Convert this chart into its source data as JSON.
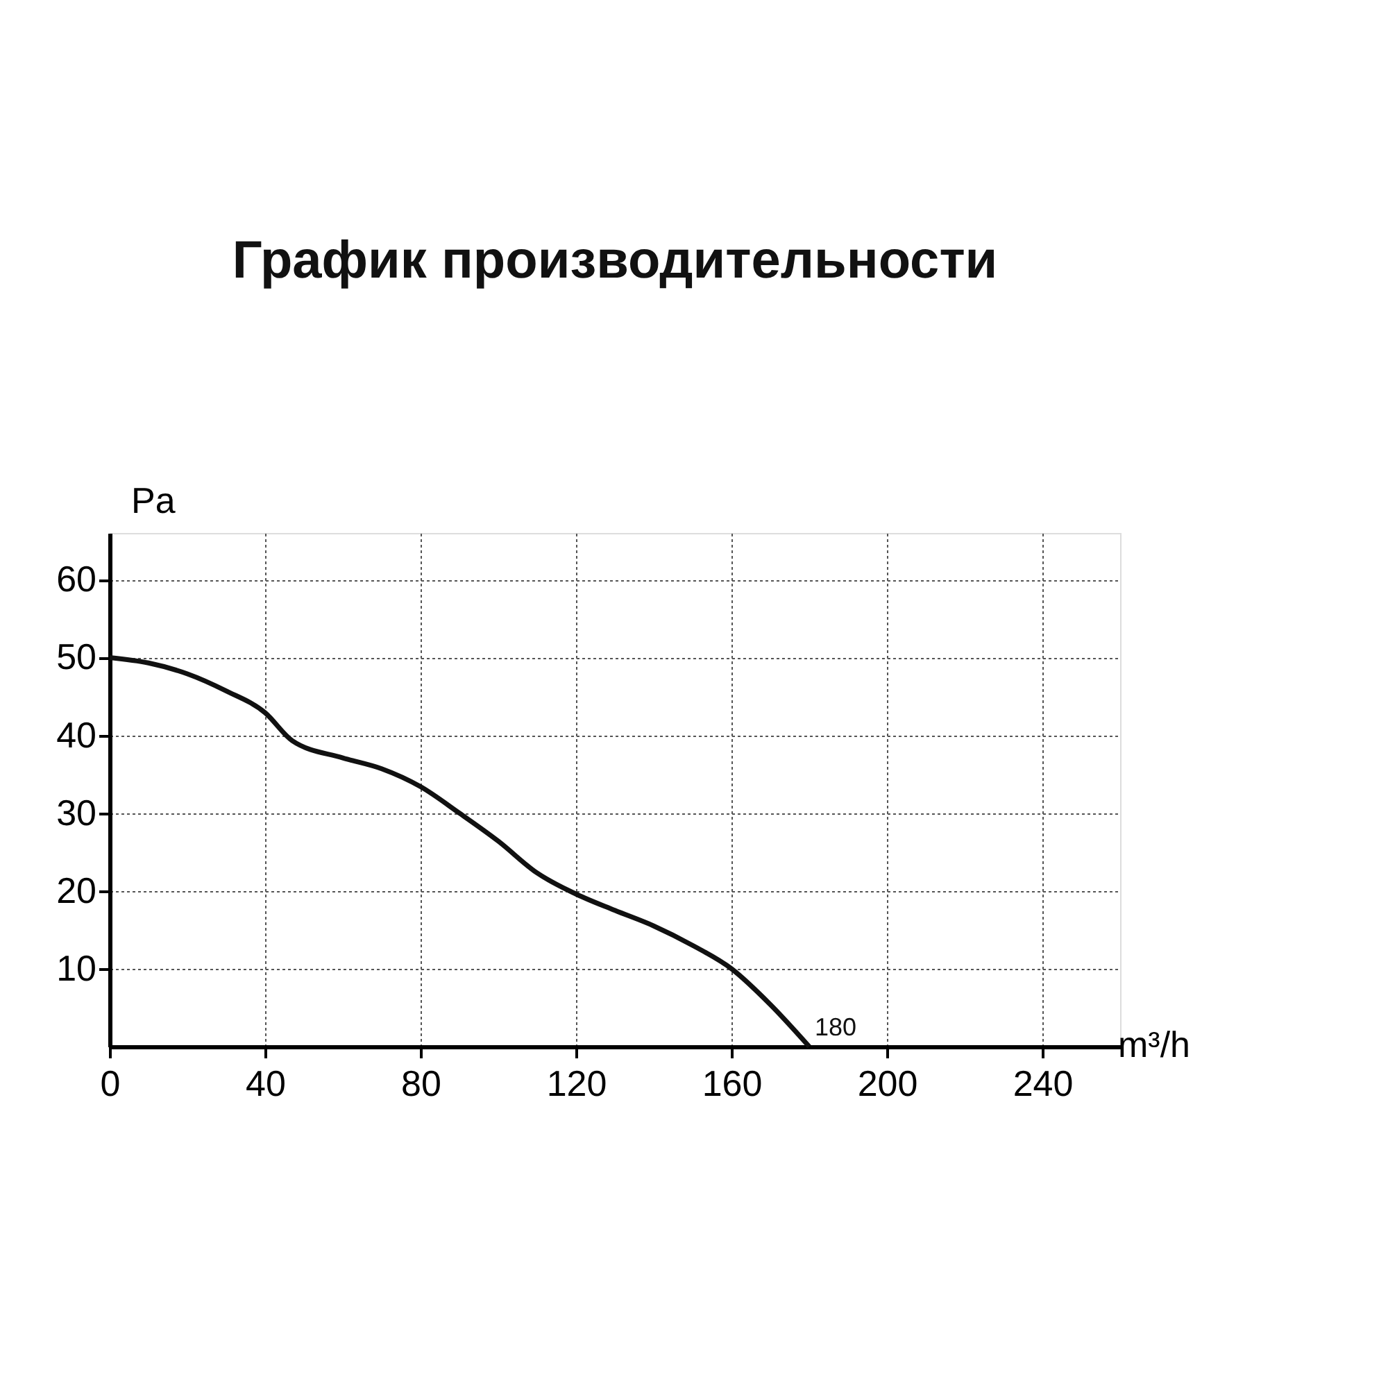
{
  "chart_data": {
    "type": "line",
    "title": "График производительности",
    "xlabel": "m³/h",
    "ylabel": "Pa",
    "x": [
      0,
      10,
      20,
      30,
      40,
      47,
      60,
      70,
      80,
      90,
      100,
      110,
      120,
      130,
      140,
      150,
      160,
      170,
      180
    ],
    "series": [
      {
        "color": "#111111",
        "values": [
          50,
          49.3,
          47.9,
          45.7,
          42.9,
          39.3,
          37.1,
          35.7,
          33.4,
          30,
          26.4,
          22.3,
          19.6,
          17.5,
          15.5,
          13,
          10,
          5.4,
          0
        ]
      }
    ],
    "xlim": [
      0,
      260
    ],
    "ylim": [
      0,
      66
    ],
    "xticks": [
      0,
      40,
      80,
      120,
      160,
      200,
      240
    ],
    "yticks": [
      10,
      20,
      30,
      40,
      50,
      60
    ],
    "grid": true,
    "line_style": "solid",
    "marker": "none",
    "annotations": [
      {
        "text": "180",
        "x": 180,
        "y": 0
      }
    ]
  }
}
